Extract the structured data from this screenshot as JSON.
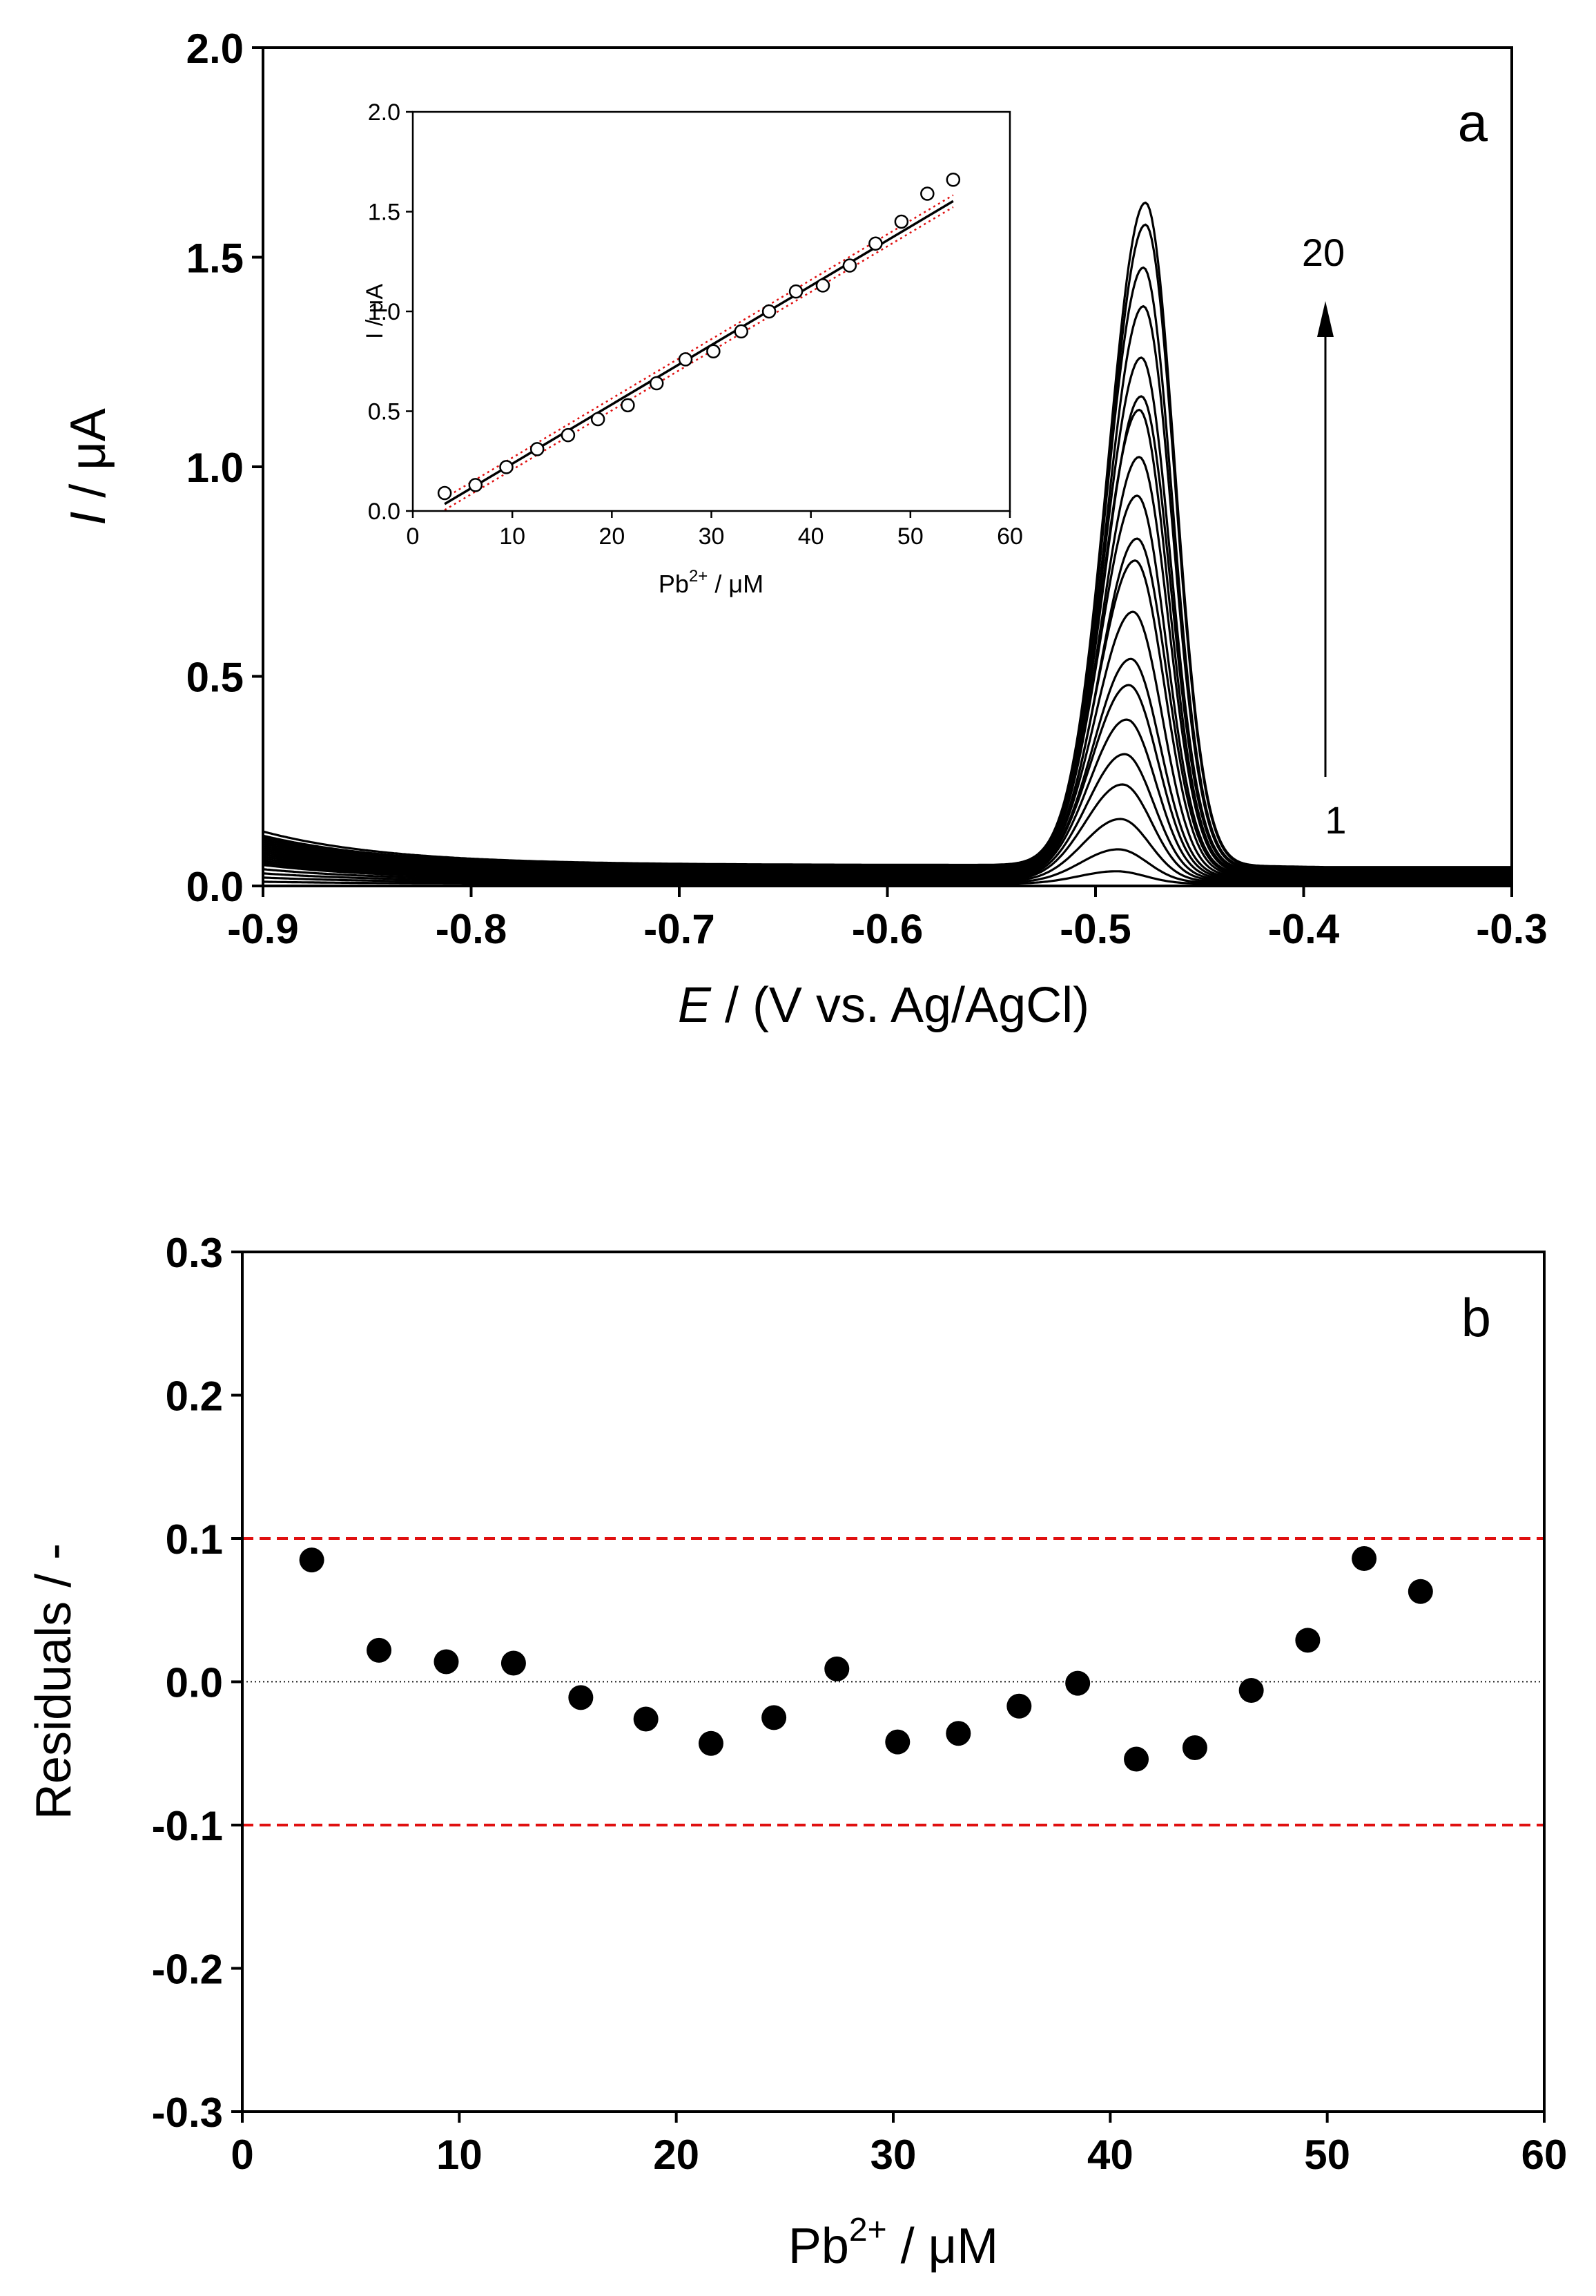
{
  "chart_data": [
    {
      "panel": "a",
      "type": "line",
      "panel_label": "a",
      "xlabel_italic": "E",
      "xlabel_rest": " / (V vs. Ag/AgCl)",
      "ylabel_italic": "I",
      "ylabel_rest": " / μA",
      "xlim": [
        -0.9,
        -0.3
      ],
      "ylim": [
        0.0,
        2.0
      ],
      "xticks": [
        -0.9,
        -0.8,
        -0.7,
        -0.6,
        -0.5,
        -0.4,
        -0.3
      ],
      "xtick_labels": [
        "-0.9",
        "-0.8",
        "-0.7",
        "-0.6",
        "-0.5",
        "-0.4",
        "-0.3"
      ],
      "yticks": [
        0.0,
        0.5,
        1.0,
        1.5,
        2.0
      ],
      "ytick_labels": [
        "0.0",
        "0.5",
        "1.0",
        "1.5",
        "2.0"
      ],
      "annotation_top": "20",
      "annotation_bottom": "1",
      "arrow_x": -0.4,
      "arrow_y_range": [
        0.27,
        1.39
      ],
      "series_count": 20,
      "peak_potentials": [
        -0.49,
        -0.489,
        -0.488,
        -0.487,
        -0.486,
        -0.485,
        -0.484,
        -0.483,
        -0.482,
        -0.481,
        -0.48,
        -0.48,
        -0.479,
        -0.479,
        -0.478,
        -0.478,
        -0.477,
        -0.477,
        -0.476,
        -0.476
      ],
      "peak_heights": [
        0.03,
        0.08,
        0.15,
        0.23,
        0.3,
        0.38,
        0.46,
        0.52,
        0.63,
        0.75,
        0.8,
        0.9,
        0.99,
        1.1,
        1.13,
        1.22,
        1.34,
        1.43,
        1.53,
        1.58
      ],
      "baseline_at_minus_0_9": [
        0.01,
        0.02,
        0.03,
        0.04,
        0.05,
        0.055,
        0.06,
        0.065,
        0.07,
        0.075,
        0.08,
        0.085,
        0.09,
        0.095,
        0.1,
        0.105,
        0.11,
        0.115,
        0.12,
        0.13
      ]
    },
    {
      "panel": "a-inset",
      "type": "scatter",
      "xlabel_base": "Pb",
      "xlabel_sup": "2+",
      "xlabel_rest": " / μM",
      "ylabel": "I / μA",
      "xlim": [
        0,
        60
      ],
      "ylim": [
        0.0,
        2.0
      ],
      "xtick_labels": [
        "0",
        "10",
        "20",
        "30",
        "40",
        "50",
        "60"
      ],
      "ytick_labels": [
        "0.0",
        "0.5",
        "1.0",
        "1.5",
        "2.0"
      ],
      "x": [
        3.2,
        6.3,
        9.4,
        12.5,
        15.6,
        18.6,
        21.6,
        24.5,
        27.4,
        30.2,
        33.0,
        35.8,
        38.5,
        41.2,
        43.9,
        46.5,
        49.1,
        51.7,
        54.3
      ],
      "y": [
        0.09,
        0.13,
        0.22,
        0.31,
        0.38,
        0.46,
        0.53,
        0.64,
        0.76,
        0.8,
        0.9,
        1.0,
        1.1,
        1.13,
        1.23,
        1.34,
        1.45,
        1.59,
        1.66
      ],
      "fit_line": {
        "slope": 0.0297,
        "intercept": -0.06,
        "x_range": [
          3.2,
          54.3
        ],
        "color": "#000000"
      },
      "confidence_lines": {
        "offset": 0.03,
        "color": "#e01010"
      }
    },
    {
      "panel": "b",
      "type": "scatter",
      "panel_label": "b",
      "xlabel_base": "Pb",
      "xlabel_sup": "2+",
      "xlabel_rest": " / μM",
      "ylabel": "Residuals / -",
      "xlim": [
        0,
        60
      ],
      "ylim": [
        -0.3,
        0.3
      ],
      "xtick_labels": [
        "0",
        "10",
        "20",
        "30",
        "40",
        "50",
        "60"
      ],
      "ytick_labels": [
        "-0.3",
        "-0.2",
        "-0.1",
        "0.0",
        "0.1",
        "0.2",
        "0.3"
      ],
      "yticks": [
        -0.3,
        -0.2,
        -0.1,
        0.0,
        0.1,
        0.2,
        0.3
      ],
      "x": [
        3.2,
        6.3,
        9.4,
        12.5,
        15.6,
        18.6,
        21.6,
        24.5,
        27.4,
        30.2,
        33.0,
        35.8,
        38.5,
        41.2,
        43.9,
        46.5,
        49.1,
        51.7,
        54.3
      ],
      "y": [
        0.085,
        0.022,
        0.014,
        0.013,
        -0.011,
        -0.026,
        -0.043,
        -0.025,
        0.009,
        -0.042,
        -0.036,
        -0.017,
        -0.001,
        -0.054,
        -0.046,
        -0.006,
        0.029,
        0.086,
        0.063
      ],
      "reference_lines": [
        0.1,
        -0.1
      ],
      "reference_color": "#e01010",
      "zero_line": 0.0
    }
  ]
}
